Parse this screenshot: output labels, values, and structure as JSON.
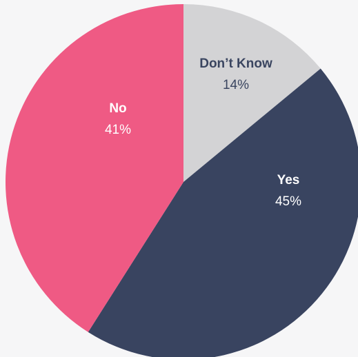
{
  "chart_data": {
    "type": "pie",
    "slices": [
      {
        "name": "Don’t Know",
        "label": "14%",
        "value": 14,
        "color": "#d3d3d5",
        "text_color": "#3a4560"
      },
      {
        "name": "Yes",
        "label": "45%",
        "value": 45,
        "color": "#394460",
        "text_color": "#ffffff"
      },
      {
        "name": "No",
        "label": "41%",
        "value": 41,
        "color": "#ef5a84",
        "text_color": "#ffffff"
      }
    ],
    "start_angle": "top",
    "direction": "clockwise",
    "legend": "none",
    "background_color": "#f6f6f7"
  }
}
